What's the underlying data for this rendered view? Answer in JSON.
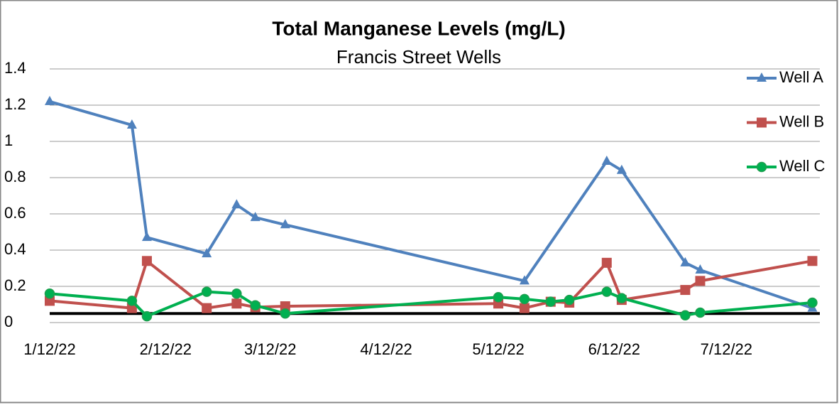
{
  "chart_data": {
    "type": "line",
    "title": "Total Manganese Levels (mg/L)",
    "subtitle": "Francis Street Wells",
    "x": [
      "2022-01-12",
      "2022-02-03",
      "2022-02-07",
      "2022-02-23",
      "2022-03-03",
      "2022-03-08",
      "2022-03-16",
      "2022-05-12",
      "2022-05-19",
      "2022-05-26",
      "2022-05-31",
      "2022-06-10",
      "2022-06-14",
      "2022-07-01",
      "2022-07-05",
      "2022-08-04"
    ],
    "series": [
      {
        "name": "Well A",
        "color": "#4f81bd",
        "marker": "triangle",
        "values": [
          1.22,
          1.09,
          0.47,
          0.38,
          0.65,
          0.58,
          0.54,
          null,
          0.23,
          null,
          null,
          0.89,
          0.84,
          0.33,
          0.29,
          0.08
        ]
      },
      {
        "name": "Well B",
        "color": "#c0504d",
        "marker": "square",
        "values": [
          0.12,
          0.08,
          0.34,
          0.08,
          0.105,
          0.085,
          0.09,
          0.105,
          0.08,
          0.115,
          0.11,
          0.33,
          0.125,
          0.18,
          0.23,
          0.34
        ]
      },
      {
        "name": "Well C",
        "color": "#00b050",
        "marker": "circle",
        "values": [
          0.16,
          0.12,
          0.035,
          0.17,
          0.16,
          0.095,
          0.05,
          0.14,
          0.13,
          0.115,
          0.125,
          0.17,
          0.135,
          0.04,
          0.055,
          0.11
        ]
      }
    ],
    "reference_line": 0.05,
    "xlim": [
      "2022-01-12",
      "2022-08-06"
    ],
    "xticks": [
      {
        "value": "2022-01-12",
        "label": "1/12/22"
      },
      {
        "value": "2022-02-12",
        "label": "2/12/22"
      },
      {
        "value": "2022-03-12",
        "label": "3/12/22"
      },
      {
        "value": "2022-04-12",
        "label": "4/12/22"
      },
      {
        "value": "2022-05-12",
        "label": "5/12/22"
      },
      {
        "value": "2022-06-12",
        "label": "6/12/22"
      },
      {
        "value": "2022-07-12",
        "label": "7/12/22"
      }
    ],
    "ylim": [
      0,
      1.4
    ],
    "yticks": [
      0,
      0.2,
      0.4,
      0.6,
      0.8,
      1,
      1.2,
      1.4
    ],
    "grid": true,
    "legend": "right"
  }
}
